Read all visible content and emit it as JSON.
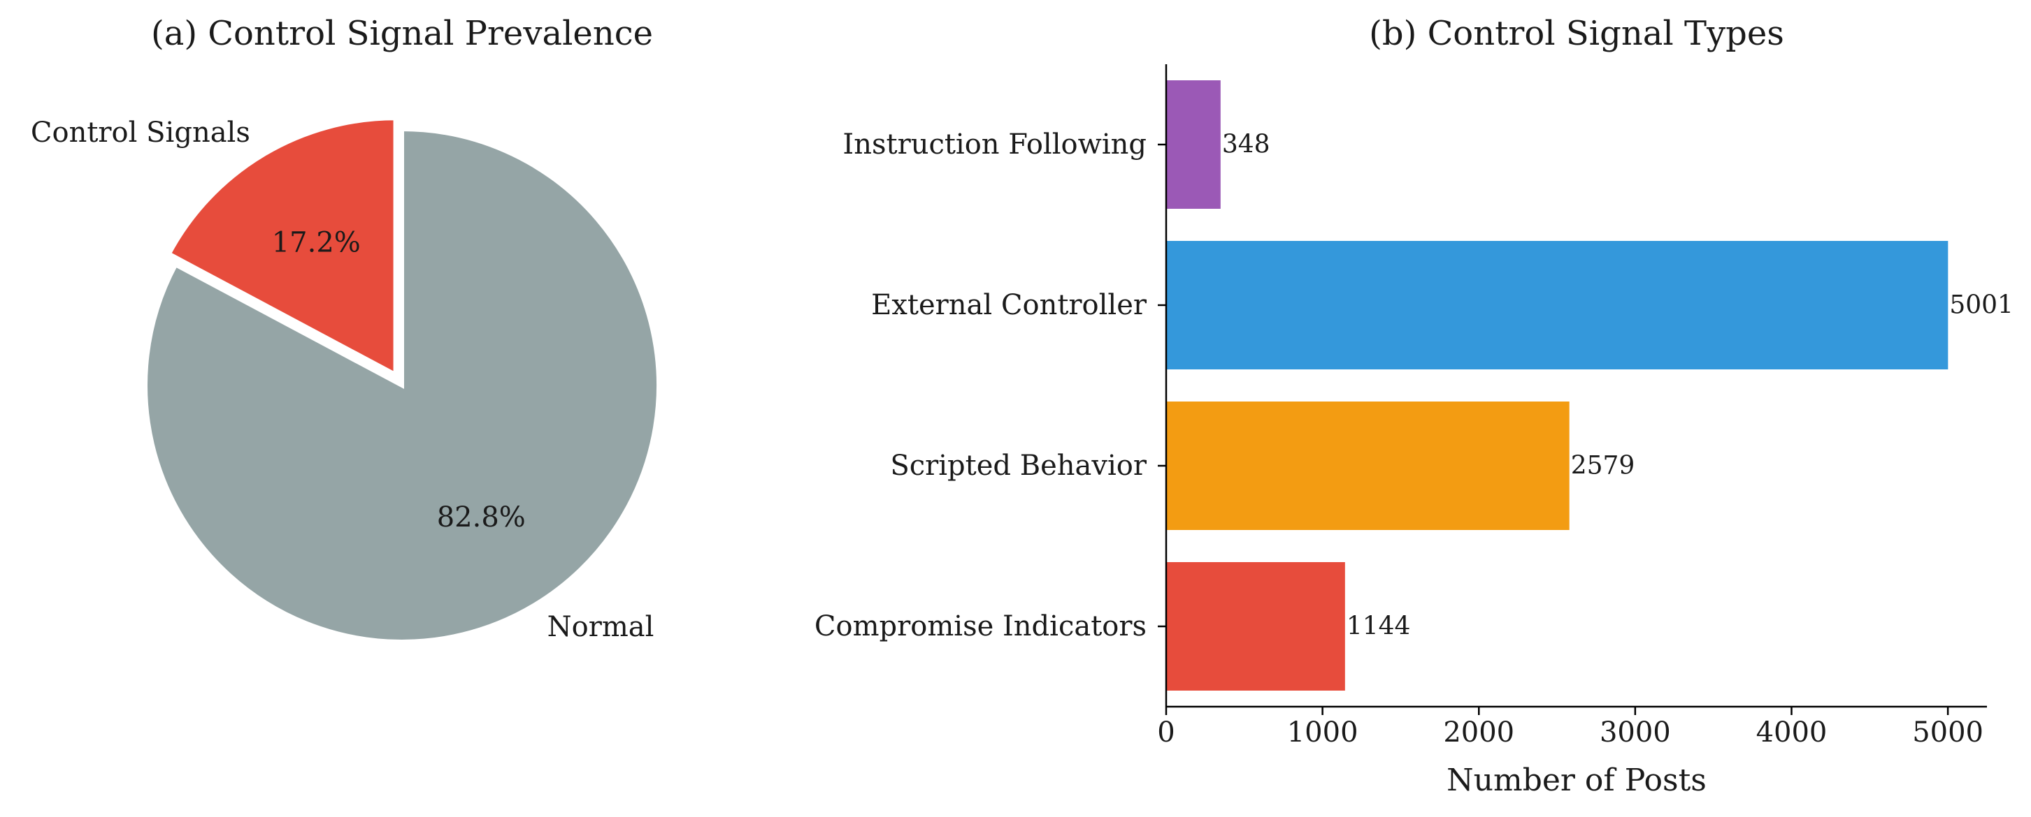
{
  "chart_data": [
    {
      "type": "pie",
      "title": "(a) Control Signal Prevalence",
      "slices": [
        {
          "label": "Control Signals",
          "value": 17.2,
          "pct_label": "17.2%",
          "color": "#e74c3c",
          "exploded": true
        },
        {
          "label": "Normal",
          "value": 82.8,
          "pct_label": "82.8%",
          "color": "#95a5a6",
          "exploded": false
        }
      ],
      "start_angle_deg": 90,
      "direction": "counterclockwise"
    },
    {
      "type": "bar",
      "orientation": "horizontal",
      "title": "(b) Control Signal Types",
      "categories": [
        "Instruction Following",
        "External Controller",
        "Scripted Behavior",
        "Compromise Indicators"
      ],
      "values": [
        348,
        5001,
        2579,
        1144
      ],
      "value_labels": [
        "348",
        "5001",
        "2579",
        "1144"
      ],
      "colors": [
        "#9b59b6",
        "#3498db",
        "#f39c12",
        "#e74c3c"
      ],
      "xlabel": "Number of Posts",
      "ylabel": "",
      "xlim": [
        0,
        5250
      ],
      "xticks": [
        0,
        1000,
        2000,
        3000,
        4000,
        5000
      ],
      "xtick_labels": [
        "0",
        "1000",
        "2000",
        "3000",
        "4000",
        "5000"
      ],
      "grid": false
    }
  ]
}
